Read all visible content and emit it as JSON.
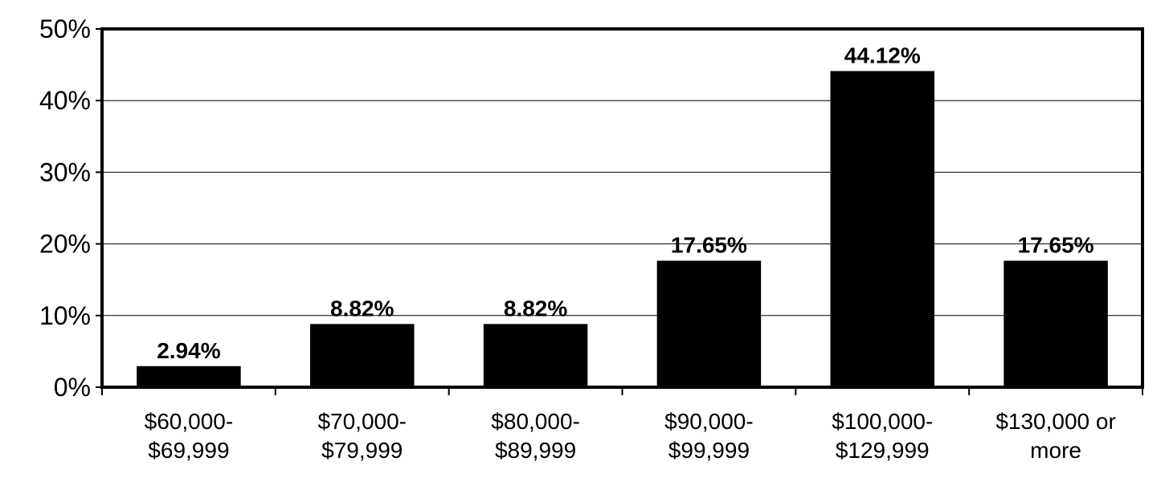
{
  "chart_data": {
    "type": "bar",
    "categories": [
      [
        "$60,000-",
        "$69,999"
      ],
      [
        "$70,000-",
        "$79,999"
      ],
      [
        "$80,000-",
        "$89,999"
      ],
      [
        "$90,000-",
        "$99,999"
      ],
      [
        "$100,000-",
        "$129,999"
      ],
      [
        "$130,000 or",
        "more"
      ]
    ],
    "values": [
      2.94,
      8.82,
      8.82,
      17.65,
      44.12,
      17.65
    ],
    "data_labels": [
      "2.94%",
      "8.82%",
      "8.82%",
      "17.65%",
      "44.12%",
      "17.65%"
    ],
    "title": "",
    "xlabel": "",
    "ylabel": "",
    "ylim": [
      0,
      50
    ],
    "yticks": [
      0,
      10,
      20,
      30,
      40,
      50
    ],
    "ytick_labels": [
      "0%",
      "10%",
      "20%",
      "30%",
      "40%",
      "50%"
    ],
    "grid": true,
    "legend": "none",
    "colors": {
      "bar": "#000000",
      "grid": "#000000",
      "axis": "#000000",
      "background": "#ffffff"
    }
  }
}
